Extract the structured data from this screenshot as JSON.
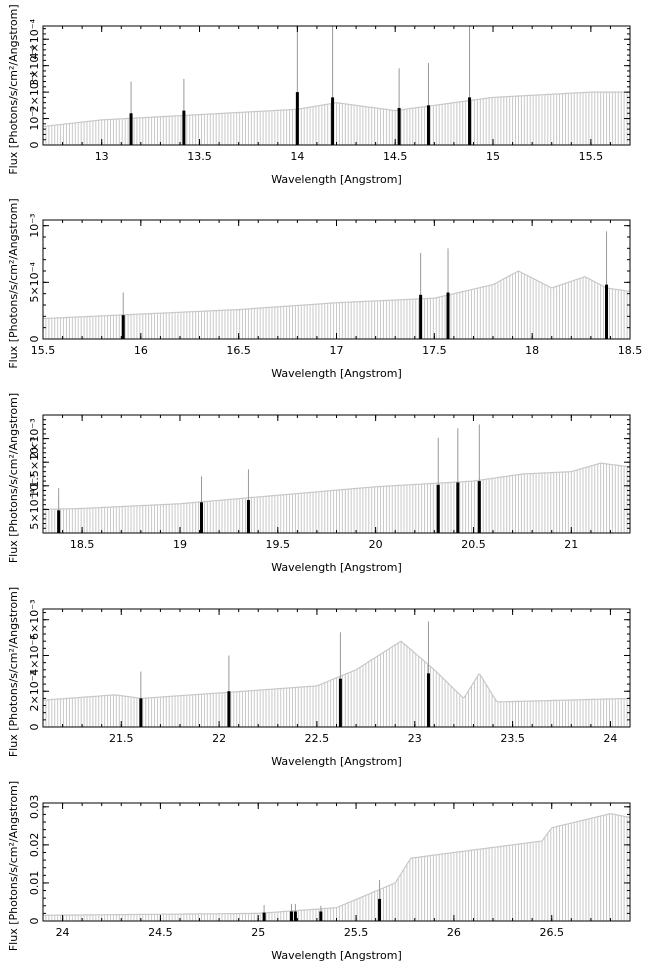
{
  "colors": {
    "continuum": "#c8c8c8",
    "line": "#000000",
    "errorbar": "#999999",
    "axis": "#000000"
  },
  "chart_data": [
    {
      "type": "bar",
      "xlabel": "Wavelength [Angstrom]",
      "ylabel": "Flux [Photons/s/cm²/Angstrom]",
      "xlim": [
        12.7,
        15.7
      ],
      "ylim": [
        0,
        0.00045
      ],
      "x_ticks": [
        13,
        13.5,
        14,
        14.5,
        15,
        15.5
      ],
      "x_tick_labels": [
        "13",
        "13.5",
        "14",
        "14.5",
        "15",
        "15.5"
      ],
      "y_ticks": [
        0,
        0.0001,
        0.0002,
        0.0003,
        0.0004
      ],
      "y_tick_labels": [
        "0",
        "10⁻⁴",
        "2×10⁻⁴",
        "3×10⁻⁴",
        "4×10⁻⁴"
      ],
      "continuum": [
        [
          12.7,
          7e-05
        ],
        [
          13.0,
          9.5e-05
        ],
        [
          13.5,
          0.000115
        ],
        [
          14.0,
          0.000135
        ],
        [
          14.2,
          0.00016
        ],
        [
          14.5,
          0.00013
        ],
        [
          15.0,
          0.00018
        ],
        [
          15.5,
          0.0002
        ],
        [
          15.7,
          0.0002
        ]
      ],
      "lines": [
        {
          "x": 13.15,
          "y": 0.00012,
          "err": 0.00012
        },
        {
          "x": 13.42,
          "y": 0.00013,
          "err": 0.00012
        },
        {
          "x": 14.0,
          "y": 0.0002,
          "err": 0.0003
        },
        {
          "x": 14.18,
          "y": 0.00018,
          "err": 0.00028
        },
        {
          "x": 14.52,
          "y": 0.00014,
          "err": 0.00015
        },
        {
          "x": 14.67,
          "y": 0.00015,
          "err": 0.00016
        },
        {
          "x": 14.88,
          "y": 0.00018,
          "err": 0.00028
        }
      ]
    },
    {
      "type": "bar",
      "xlabel": "Wavelength [Angstrom]",
      "ylabel": "Flux [Photons/s/cm²/Angstrom]",
      "xlim": [
        15.5,
        18.5
      ],
      "ylim": [
        0,
        0.00105
      ],
      "x_ticks": [
        15.5,
        16,
        16.5,
        17,
        17.5,
        18,
        18.5
      ],
      "x_tick_labels": [
        "15.5",
        "16",
        "16.5",
        "17",
        "17.5",
        "18",
        "18.5"
      ],
      "y_ticks": [
        0,
        0.0005,
        0.001
      ],
      "y_tick_labels": [
        "0",
        "5×10⁻⁴",
        "10⁻³"
      ],
      "continuum": [
        [
          15.5,
          0.00018
        ],
        [
          16.0,
          0.00022
        ],
        [
          16.5,
          0.00026
        ],
        [
          17.0,
          0.00032
        ],
        [
          17.5,
          0.00036
        ],
        [
          17.8,
          0.00048
        ],
        [
          17.93,
          0.0006
        ],
        [
          18.1,
          0.00045
        ],
        [
          18.27,
          0.00055
        ],
        [
          18.38,
          0.00045
        ],
        [
          18.5,
          0.00042
        ]
      ],
      "lines": [
        {
          "x": 15.91,
          "y": 0.00021,
          "err": 0.0002
        },
        {
          "x": 17.43,
          "y": 0.00039,
          "err": 0.00037
        },
        {
          "x": 17.57,
          "y": 0.00041,
          "err": 0.00039
        },
        {
          "x": 18.38,
          "y": 0.00048,
          "err": 0.00047
        }
      ]
    },
    {
      "type": "bar",
      "xlabel": "Wavelength [Angstrom]",
      "ylabel": "Flux [Photons/s/cm²/Angstrom]",
      "xlim": [
        18.3,
        21.3
      ],
      "ylim": [
        0,
        0.0025
      ],
      "x_ticks": [
        18.5,
        19,
        19.5,
        20,
        20.5,
        21
      ],
      "x_tick_labels": [
        "18.5",
        "19",
        "19.5",
        "20",
        "20.5",
        "21"
      ],
      "y_ticks": [
        0.0005,
        0.001,
        0.0015,
        0.002
      ],
      "y_tick_labels": [
        "5×10⁻⁴",
        "10⁻³",
        "1.5×10⁻³",
        "2×10⁻³"
      ],
      "continuum": [
        [
          18.3,
          0.0005
        ],
        [
          18.5,
          0.00052
        ],
        [
          19.0,
          0.00062
        ],
        [
          19.5,
          0.0008
        ],
        [
          20.0,
          0.00098
        ],
        [
          20.5,
          0.0011
        ],
        [
          20.75,
          0.00125
        ],
        [
          21.0,
          0.0013
        ],
        [
          21.15,
          0.00148
        ],
        [
          21.3,
          0.0014
        ]
      ],
      "lines": [
        {
          "x": 18.38,
          "y": 0.00048,
          "err": 0.00047
        },
        {
          "x": 19.11,
          "y": 0.00065,
          "err": 0.00055
        },
        {
          "x": 19.35,
          "y": 0.0007,
          "err": 0.00065
        },
        {
          "x": 20.32,
          "y": 0.00102,
          "err": 0.001
        },
        {
          "x": 20.42,
          "y": 0.00107,
          "err": 0.00115
        },
        {
          "x": 20.53,
          "y": 0.0011,
          "err": 0.0012
        }
      ]
    },
    {
      "type": "bar",
      "xlabel": "Wavelength [Angstrom]",
      "ylabel": "Flux [Photons/s/cm²/Angstrom]",
      "xlim": [
        21.1,
        24.1
      ],
      "ylim": [
        0,
        0.0066
      ],
      "x_ticks": [
        21.5,
        22,
        22.5,
        23,
        23.5,
        24
      ],
      "x_tick_labels": [
        "21.5",
        "22",
        "22.5",
        "23",
        "23.5",
        "24"
      ],
      "y_ticks": [
        0,
        0.002,
        0.004,
        0.006
      ],
      "y_tick_labels": [
        "0",
        "2×10⁻³",
        "4×10⁻³",
        "6×10⁻³"
      ],
      "continuum": [
        [
          21.1,
          0.0015
        ],
        [
          21.47,
          0.0018
        ],
        [
          21.6,
          0.0016
        ],
        [
          22.0,
          0.0019
        ],
        [
          22.5,
          0.0023
        ],
        [
          22.7,
          0.0032
        ],
        [
          22.93,
          0.0048
        ],
        [
          23.1,
          0.0032
        ],
        [
          23.25,
          0.0016
        ],
        [
          23.33,
          0.003
        ],
        [
          23.42,
          0.0014
        ],
        [
          24.1,
          0.0016
        ]
      ],
      "lines": [
        {
          "x": 21.6,
          "y": 0.0016,
          "err": 0.0015
        },
        {
          "x": 22.05,
          "y": 0.002,
          "err": 0.002
        },
        {
          "x": 22.62,
          "y": 0.0027,
          "err": 0.0026
        },
        {
          "x": 23.07,
          "y": 0.003,
          "err": 0.0029
        }
      ]
    },
    {
      "type": "bar",
      "xlabel": "Wavelength [Angstrom]",
      "ylabel": "Flux [Photons/s/cm²/Angstrom]",
      "xlim": [
        23.9,
        26.9
      ],
      "ylim": [
        0,
        0.031
      ],
      "x_ticks": [
        24,
        24.5,
        25,
        25.5,
        26,
        26.5
      ],
      "x_tick_labels": [
        "24",
        "24.5",
        "25",
        "25.5",
        "26",
        "26.5"
      ],
      "y_ticks": [
        0,
        0.01,
        0.02,
        0.03
      ],
      "y_tick_labels": [
        "0",
        "0.01",
        "0.02",
        "0.03"
      ],
      "continuum": [
        [
          23.9,
          0.0015
        ],
        [
          25.0,
          0.002
        ],
        [
          25.4,
          0.0035
        ],
        [
          25.7,
          0.01
        ],
        [
          25.78,
          0.0165
        ],
        [
          26.0,
          0.018
        ],
        [
          26.45,
          0.021
        ],
        [
          26.5,
          0.0245
        ],
        [
          26.8,
          0.0282
        ],
        [
          26.9,
          0.0272
        ]
      ],
      "lines": [
        {
          "x": 25.03,
          "y": 0.0022,
          "err": 0.002
        },
        {
          "x": 25.17,
          "y": 0.0025,
          "err": 0.002
        },
        {
          "x": 25.19,
          "y": 0.0025,
          "err": 0.002
        },
        {
          "x": 25.32,
          "y": 0.0025,
          "err": 0.0015
        },
        {
          "x": 25.62,
          "y": 0.0058,
          "err": 0.005
        }
      ]
    }
  ]
}
